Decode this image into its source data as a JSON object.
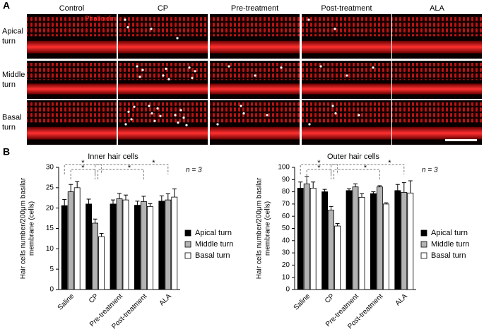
{
  "panel_a": {
    "label": "A",
    "stain": "Phalloidin",
    "columns": [
      "Control",
      "CP",
      "Pre-treatment",
      "Post-treatment",
      "ALA"
    ],
    "rows": [
      [
        "Apical",
        "turn"
      ],
      [
        "Middle",
        "turn"
      ],
      [
        "Basal",
        "turn"
      ]
    ]
  },
  "panel_b_label": "B",
  "chart_data": [
    {
      "type": "bar",
      "title": "Inner hair cells",
      "ylabel": [
        "Hair cells number/200μm basilar",
        "membrane (cells)"
      ],
      "categories": [
        "Saline",
        "CP",
        "Pre-treatment",
        "Post-treatment",
        "ALA"
      ],
      "series": [
        {
          "name": "Apical turn",
          "color": "#000000",
          "values": [
            20.6,
            21,
            21,
            20.7,
            21.7
          ],
          "errors": [
            1.5,
            1.2,
            1,
            1,
            1.3
          ]
        },
        {
          "name": "Middle turn",
          "color": "#b3b3b3",
          "values": [
            24,
            16.3,
            22.3,
            21.6,
            22
          ],
          "errors": [
            1.8,
            1,
            1.3,
            1.3,
            1.5
          ]
        },
        {
          "name": "Basal turn",
          "color": "#ffffff",
          "values": [
            25,
            13,
            22,
            20.4,
            22.7
          ],
          "errors": [
            1.5,
            0.8,
            1.2,
            0.7,
            2
          ]
        }
      ],
      "ylim": [
        0,
        30
      ],
      "yticks": [
        0,
        5,
        10,
        15,
        20,
        25,
        30
      ],
      "n_label": "n = 3",
      "significance_marks": [
        "*",
        "*",
        "*",
        "*"
      ]
    },
    {
      "type": "bar",
      "title": "Outer hair cells",
      "ylabel": [
        "Hair cells number/200μm basilar",
        "membrane (cells)"
      ],
      "categories": [
        "Saline",
        "CP",
        "Pre-treatment",
        "Post-treatment",
        "ALA"
      ],
      "series": [
        {
          "name": "Apical turn",
          "color": "#000000",
          "values": [
            83,
            80,
            81,
            78.5,
            81
          ],
          "errors": [
            5,
            2,
            1.5,
            1.5,
            5
          ]
        },
        {
          "name": "Middle turn",
          "color": "#b3b3b3",
          "values": [
            86.5,
            65,
            84,
            84,
            79.5
          ],
          "errors": [
            6,
            3,
            2.5,
            1,
            8
          ]
        },
        {
          "name": "Basal turn",
          "color": "#ffffff",
          "values": [
            83,
            52,
            75.5,
            70,
            79
          ],
          "errors": [
            5,
            2,
            3,
            1,
            10
          ]
        }
      ],
      "ylim": [
        0,
        100
      ],
      "yticks": [
        0,
        10,
        20,
        30,
        40,
        50,
        60,
        70,
        80,
        90,
        100
      ],
      "n_label": "n = 3",
      "significance_marks": [
        "*",
        "*",
        "*",
        "*"
      ]
    }
  ]
}
